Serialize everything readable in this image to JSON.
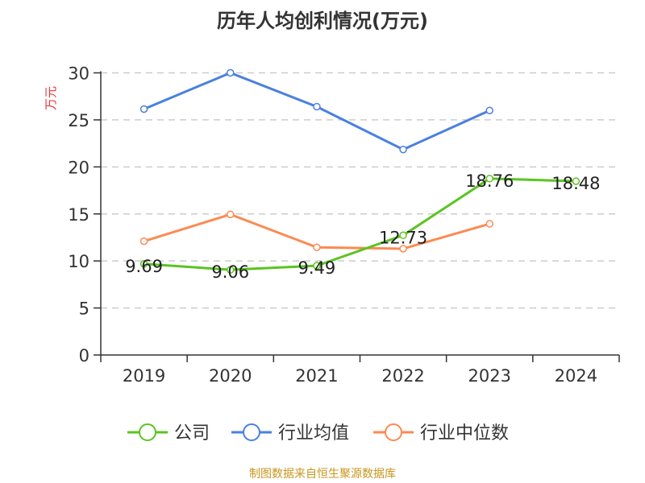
{
  "chart_data": {
    "type": "line",
    "title": "历年人均创利情况(万元)",
    "ylabel": "万元",
    "categories": [
      "2019",
      "2020",
      "2021",
      "2022",
      "2023",
      "2024"
    ],
    "ylim": [
      0,
      30
    ],
    "yticks": [
      0,
      5,
      10,
      15,
      20,
      25,
      30
    ],
    "grid": true,
    "legend_position": "bottom",
    "series": [
      {
        "name": "公司",
        "color": "#5ac421",
        "values": [
          9.69,
          9.06,
          9.49,
          12.73,
          18.76,
          18.48
        ],
        "labels": [
          "9.69",
          "9.06",
          "9.49",
          "12.73",
          "18.76",
          "18.48"
        ]
      },
      {
        "name": "行业均值",
        "color": "#4a80e0",
        "values": [
          26.15,
          30.0,
          26.4,
          21.85,
          26.0,
          null
        ]
      },
      {
        "name": "行业中位数",
        "color": "#fc8a52",
        "values": [
          12.1,
          14.95,
          11.45,
          11.3,
          13.95,
          null
        ]
      }
    ]
  },
  "footer": "制图数据来自恒生聚源数据库"
}
